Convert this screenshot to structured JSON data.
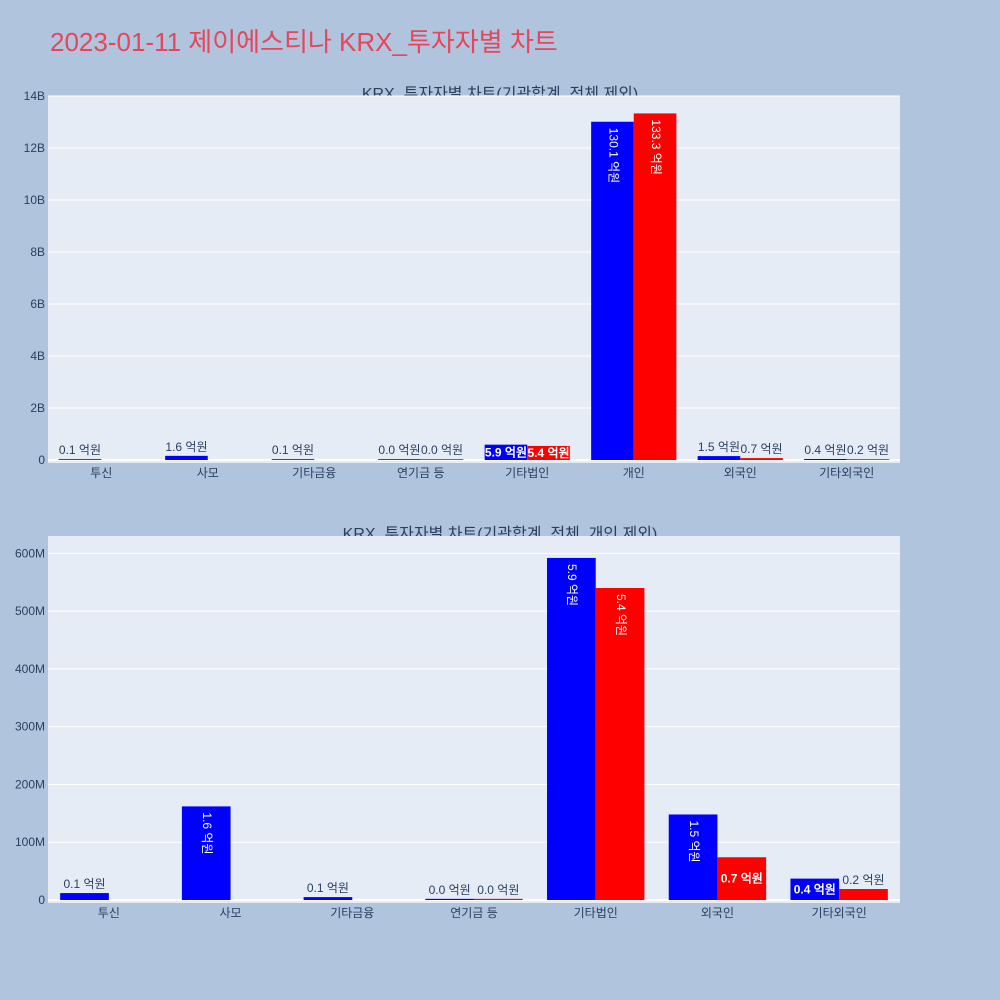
{
  "page_title": "2023-01-11 제이에스티나 KRX_투자자별 차트",
  "colors": {
    "background": "#b0c4de",
    "plot_bg": "#e5ecf6",
    "series1": "#0000ff",
    "series2": "#ff0000",
    "title": "#e8455a"
  },
  "chart_data": [
    {
      "type": "bar",
      "title": "KRX_투자자별 차트(기관합계_전체 제외)",
      "categories": [
        "투신",
        "사모",
        "기타금융",
        "연기금 등",
        "기타법인",
        "개인",
        "외국인",
        "기타외국인"
      ],
      "ylim": [
        0,
        14000000000
      ],
      "yticks": [
        0,
        2000000000,
        4000000000,
        6000000000,
        8000000000,
        10000000000,
        12000000000,
        14000000000
      ],
      "yticklabels": [
        "0",
        "2B",
        "4B",
        "6B",
        "8B",
        "10B",
        "12B",
        "14B"
      ],
      "grid": true,
      "series": [
        {
          "color": "#0000ff",
          "values": [
            12000000,
            160000000,
            5000000,
            2000000,
            590000000,
            13010000000,
            150000000,
            38000000
          ],
          "labels": [
            "0.1 억원",
            "1.6 억원",
            "0.1 억원",
            "0.0 억원",
            "5.9 억원",
            "130.1 억원",
            "1.5 억원",
            "0.4 억원"
          ]
        },
        {
          "color": "#ff0000",
          "values": [
            null,
            null,
            null,
            2000000,
            540000000,
            13330000000,
            74000000,
            19000000
          ],
          "labels": [
            null,
            null,
            null,
            "0.0 억원",
            "5.4 억원",
            "133.3 억원",
            "0.7 억원",
            "0.2 억원"
          ]
        }
      ]
    },
    {
      "type": "bar",
      "title": "KRX_투자자별 차트(기관합계_전체_개인 제외)",
      "categories": [
        "투신",
        "사모",
        "기타금융",
        "연기금 등",
        "기타법인",
        "외국인",
        "기타외국인"
      ],
      "ylim": [
        0,
        630000000
      ],
      "yticks": [
        0,
        100000000,
        200000000,
        300000000,
        400000000,
        500000000,
        600000000
      ],
      "yticklabels": [
        "0",
        "100M",
        "200M",
        "300M",
        "400M",
        "500M",
        "600M"
      ],
      "grid": true,
      "series": [
        {
          "color": "#0000ff",
          "values": [
            12000000,
            162000000,
            5000000,
            2000000,
            592000000,
            148000000,
            37000000
          ],
          "labels": [
            "0.1 억원",
            "1.6 억원",
            "0.1 억원",
            "0.0 억원",
            "5.9 억원",
            "1.5 억원",
            "0.4 억원"
          ]
        },
        {
          "color": "#ff0000",
          "values": [
            null,
            null,
            null,
            2000000,
            540000000,
            74000000,
            19000000
          ],
          "labels": [
            null,
            null,
            null,
            "0.0 억원",
            "5.4 억원",
            "0.7 억원",
            "0.2 억원"
          ]
        }
      ]
    }
  ]
}
